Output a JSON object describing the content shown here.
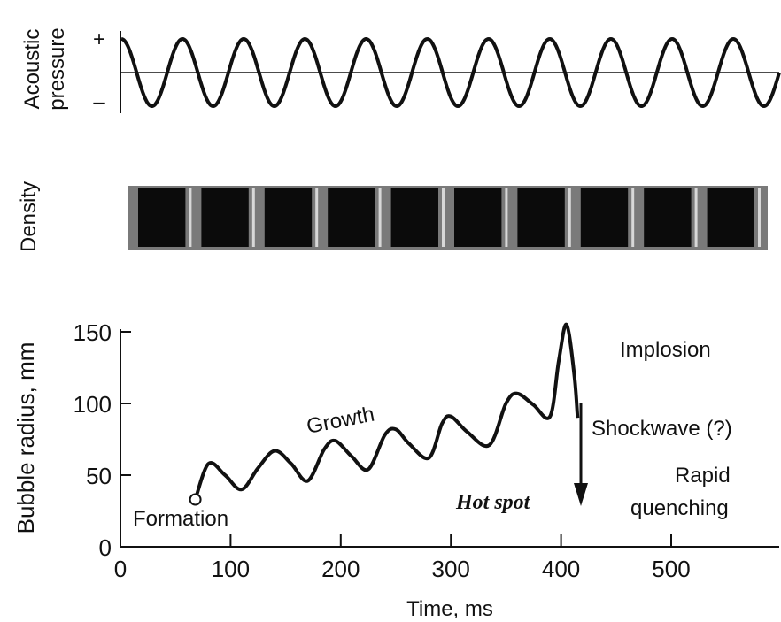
{
  "panels": {
    "pressure": {
      "ylabel_line1": "Acoustic",
      "ylabel_line2": "pressure",
      "plus": "+",
      "minus": "–",
      "cycles": 11
    },
    "density": {
      "ylabel": "Density",
      "bands": 10
    }
  },
  "chart_data": {
    "type": "line",
    "title": "",
    "xlabel": "Time, ms",
    "ylabel": "Bubble radius, mm",
    "xlim": [
      0,
      590
    ],
    "ylim": [
      0,
      155
    ],
    "xticks": [
      "0",
      "100",
      "200",
      "300",
      "400",
      "500"
    ],
    "yticks": [
      "0",
      "50",
      "100",
      "150"
    ],
    "series": [
      {
        "points": [
          [
            68,
            33
          ],
          [
            80,
            58
          ],
          [
            95,
            50
          ],
          [
            110,
            40
          ],
          [
            125,
            55
          ],
          [
            140,
            67
          ],
          [
            155,
            58
          ],
          [
            170,
            46
          ],
          [
            185,
            68
          ],
          [
            195,
            74
          ],
          [
            210,
            63
          ],
          [
            225,
            54
          ],
          [
            240,
            78
          ],
          [
            250,
            82
          ],
          [
            262,
            72
          ],
          [
            280,
            62
          ],
          [
            292,
            86
          ],
          [
            300,
            91
          ],
          [
            315,
            80
          ],
          [
            335,
            71
          ],
          [
            350,
            100
          ],
          [
            360,
            107
          ],
          [
            375,
            99
          ],
          [
            390,
            91
          ],
          [
            398,
            130
          ],
          [
            405,
            155
          ],
          [
            412,
            120
          ],
          [
            415,
            90
          ]
        ]
      }
    ],
    "annotations": {
      "formation": "Formation",
      "growth": "Growth",
      "implosion": "Implosion",
      "shockwave": "Shockwave (?)",
      "rapid": "Rapid",
      "quenching": "quenching",
      "hotspot": "Hot spot"
    }
  }
}
